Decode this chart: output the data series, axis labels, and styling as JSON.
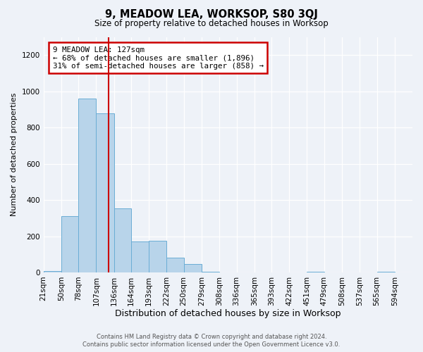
{
  "title": "9, MEADOW LEA, WORKSOP, S80 3QJ",
  "subtitle": "Size of property relative to detached houses in Worksop",
  "xlabel": "Distribution of detached houses by size in Worksop",
  "ylabel": "Number of detached properties",
  "footer_line1": "Contains HM Land Registry data © Crown copyright and database right 2024.",
  "footer_line2": "Contains public sector information licensed under the Open Government Licence v3.0.",
  "annotation_line1": "9 MEADOW LEA: 127sqm",
  "annotation_line2": "← 68% of detached houses are smaller (1,896)",
  "annotation_line3": "31% of semi-detached houses are larger (858) →",
  "property_size": 127,
  "bar_color": "#b8d4ea",
  "bar_edge_color": "#6aadd5",
  "vline_color": "#cc0000",
  "background_color": "#eef2f8",
  "categories": [
    "21sqm",
    "50sqm",
    "78sqm",
    "107sqm",
    "136sqm",
    "164sqm",
    "193sqm",
    "222sqm",
    "250sqm",
    "279sqm",
    "308sqm",
    "336sqm",
    "365sqm",
    "393sqm",
    "422sqm",
    "451sqm",
    "479sqm",
    "508sqm",
    "537sqm",
    "565sqm",
    "594sqm"
  ],
  "bin_edges": [
    21,
    50,
    78,
    107,
    136,
    164,
    193,
    222,
    250,
    279,
    308,
    336,
    365,
    393,
    422,
    451,
    479,
    508,
    537,
    565,
    594,
    623
  ],
  "values": [
    8,
    310,
    960,
    880,
    355,
    170,
    175,
    80,
    48,
    5,
    0,
    0,
    0,
    0,
    0,
    4,
    0,
    0,
    0,
    4,
    0
  ],
  "ylim": [
    0,
    1300
  ],
  "yticks": [
    0,
    200,
    400,
    600,
    800,
    1000,
    1200
  ]
}
